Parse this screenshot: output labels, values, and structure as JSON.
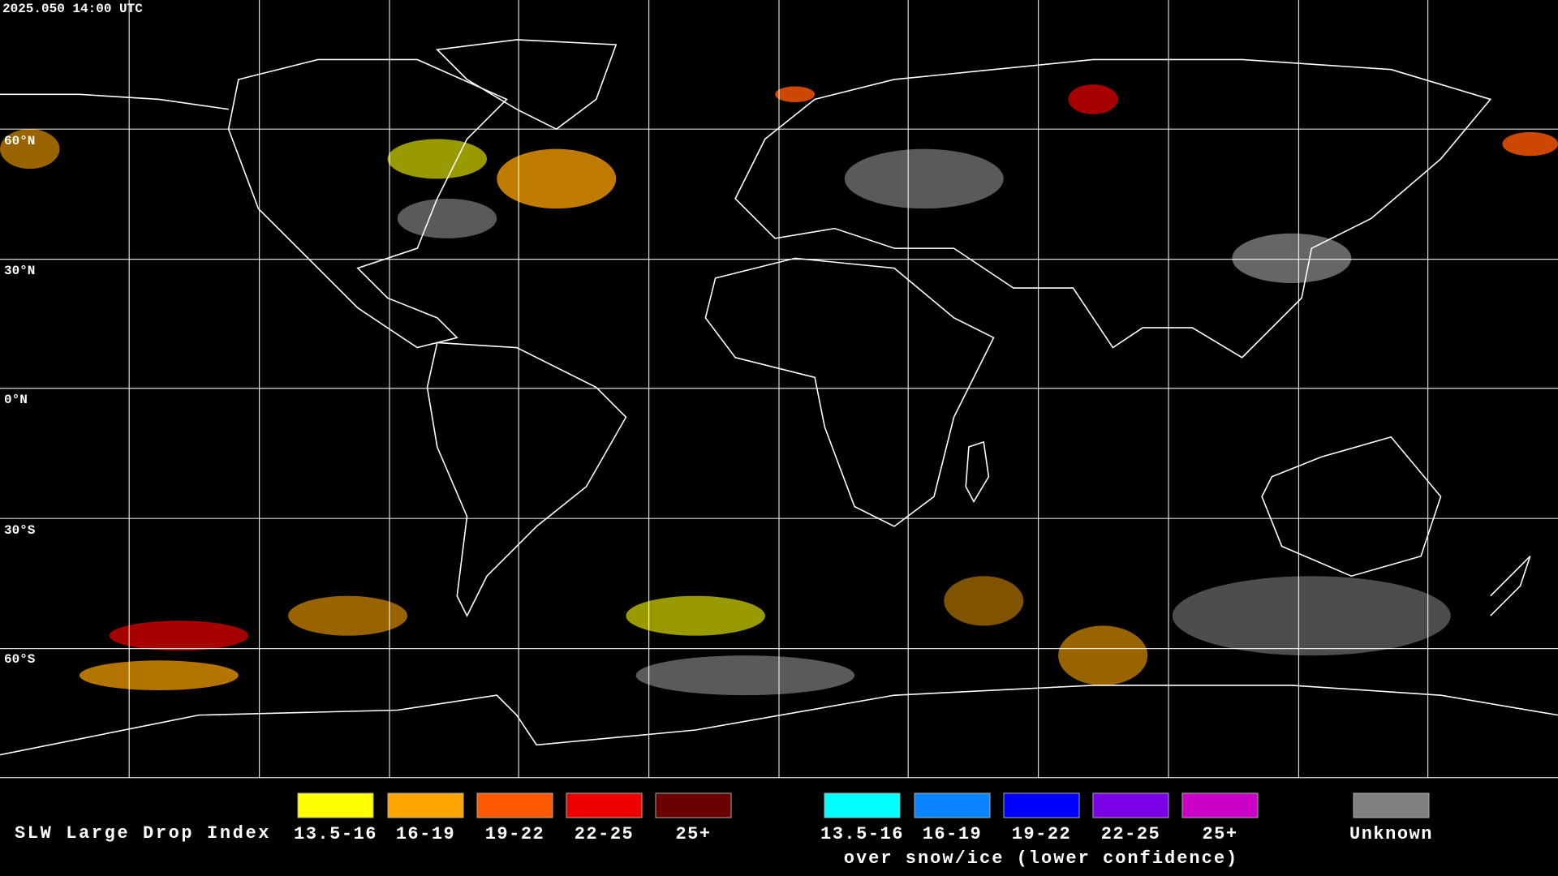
{
  "header": {
    "timestamp": "2025.050 14:00 UTC"
  },
  "map": {
    "latitude_labels": [
      "60°N",
      "30°N",
      "0°N",
      "30°S",
      "60°S"
    ]
  },
  "legend": {
    "title": "SLW Large Drop Index",
    "groups": [
      {
        "items": [
          {
            "label": "13.5-16",
            "color": "#ffff00"
          },
          {
            "label": "16-19",
            "color": "#ffa500"
          },
          {
            "label": "19-22",
            "color": "#ff5a00"
          },
          {
            "label": "22-25",
            "color": "#ee0000"
          },
          {
            "label": "25+",
            "color": "#6a0000"
          }
        ]
      },
      {
        "items": [
          {
            "label": "13.5-16",
            "color": "#00ffff"
          },
          {
            "label": "16-19",
            "color": "#0a84ff"
          },
          {
            "label": "19-22",
            "color": "#0000ff"
          },
          {
            "label": "22-25",
            "color": "#7a00e6"
          },
          {
            "label": "25+",
            "color": "#c800c8"
          }
        ],
        "caption": "over snow/ice (lower confidence)"
      },
      {
        "items": [
          {
            "label": "Unknown",
            "color": "#808080"
          }
        ]
      }
    ]
  }
}
